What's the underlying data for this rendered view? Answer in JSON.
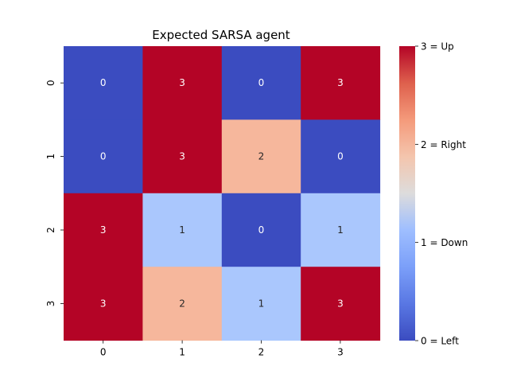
{
  "chart_data": {
    "type": "heatmap",
    "title": "Expected SARSA agent",
    "rows": [
      "0",
      "1",
      "2",
      "3"
    ],
    "columns": [
      "0",
      "1",
      "2",
      "3"
    ],
    "values": [
      [
        0,
        3,
        0,
        3
      ],
      [
        0,
        3,
        2,
        0
      ],
      [
        3,
        1,
        0,
        1
      ],
      [
        3,
        2,
        1,
        3
      ]
    ],
    "annotations": true,
    "colormap": "coolwarm",
    "vmin": 0,
    "vmax": 3,
    "colorbar": {
      "placement": "right",
      "ticks": [
        {
          "value": 0,
          "label": "0 = Left"
        },
        {
          "value": 1,
          "label": "1 = Down"
        },
        {
          "value": 2,
          "label": "2 = Right"
        },
        {
          "value": 3,
          "label": "3 = Up"
        }
      ]
    },
    "colors": {
      "0": "#3b4cc0",
      "1": "#aac7fd",
      "2": "#f6b79c",
      "3": "#b40426"
    }
  }
}
